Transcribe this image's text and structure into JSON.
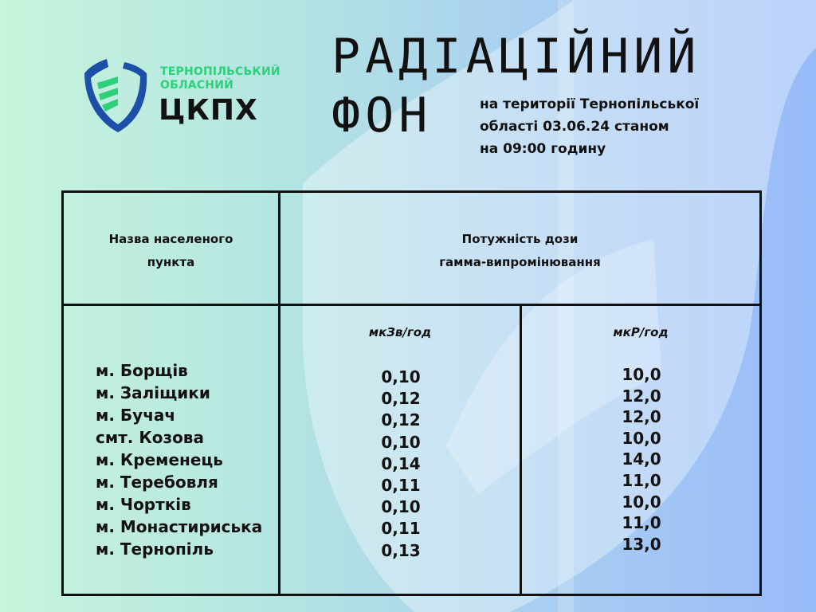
{
  "logo": {
    "line1": "ТЕРНОПІЛЬСЬКИЙ",
    "line2": "ОБЛАСНИЙ",
    "abbr": "ЦКПХ",
    "colors": {
      "blue": "#1d4fa8",
      "green": "#2ed07a"
    }
  },
  "title": {
    "line1": "РАДІАЦІЙНИЙ",
    "line2": "ФОН"
  },
  "subtitle": [
    "на території Тернопільської",
    "області 03.06.24 станом",
    "на 09:00 годину"
  ],
  "table": {
    "header_place": [
      "Назва населеного",
      "пункта"
    ],
    "header_dose": [
      "Потужність дози",
      "гамма-випромінювання"
    ],
    "unit1": "мкЗв/год",
    "unit2": "мкР/год",
    "rows": [
      {
        "place": "м. Борщів",
        "usv": "0,10",
        "ur": "10,0"
      },
      {
        "place": "м. Заліщики",
        "usv": "0,12",
        "ur": "12,0"
      },
      {
        "place": "м. Бучач",
        "usv": "0,12",
        "ur": "12,0"
      },
      {
        "place": "смт. Козова",
        "usv": "0,10",
        "ur": "10,0"
      },
      {
        "place": "м. Кременець",
        "usv": "0,14",
        "ur": "14,0"
      },
      {
        "place": "м. Теребовля",
        "usv": "0,11",
        "ur": "11,0"
      },
      {
        "place": "м. Чортків",
        "usv": "0,10",
        "ur": "10,0"
      },
      {
        "place": "м. Монастириська",
        "usv": "0,11",
        "ur": "11,0"
      },
      {
        "place": "м. Тернопіль",
        "usv": "0,13",
        "ur": "13,0"
      }
    ]
  }
}
